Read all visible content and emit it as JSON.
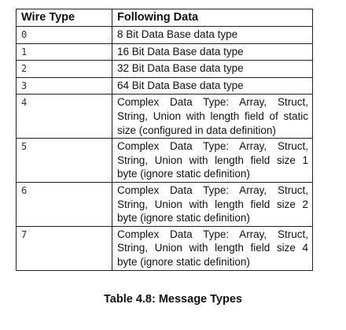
{
  "table": {
    "headers": [
      "Wire Type",
      "Following Data"
    ],
    "rows": [
      {
        "wire_type": "0",
        "following_data": "8 Bit Data Base data type"
      },
      {
        "wire_type": "1",
        "following_data": "16 Bit Data Base data type"
      },
      {
        "wire_type": "2",
        "following_data": "32 Bit Data Base data type"
      },
      {
        "wire_type": "3",
        "following_data": "64 Bit Data Base data type"
      },
      {
        "wire_type": "4",
        "following_data": "Complex Data Type: Array, Struct, String, Union with length field of static size (configured in data definition)"
      },
      {
        "wire_type": "5",
        "following_data": "Complex Data Type: Array, Struct, String, Union with length field size 1 byte (ignore static definition)"
      },
      {
        "wire_type": "6",
        "following_data": "Complex Data Type: Array, Struct, String, Union with length field size 2 byte (ignore static definition)"
      },
      {
        "wire_type": "7",
        "following_data": "Complex Data Type: Array, Struct, String, Union with length field size 4 byte (ignore static definition)"
      }
    ]
  },
  "caption": "Table 4.8: Message Types"
}
